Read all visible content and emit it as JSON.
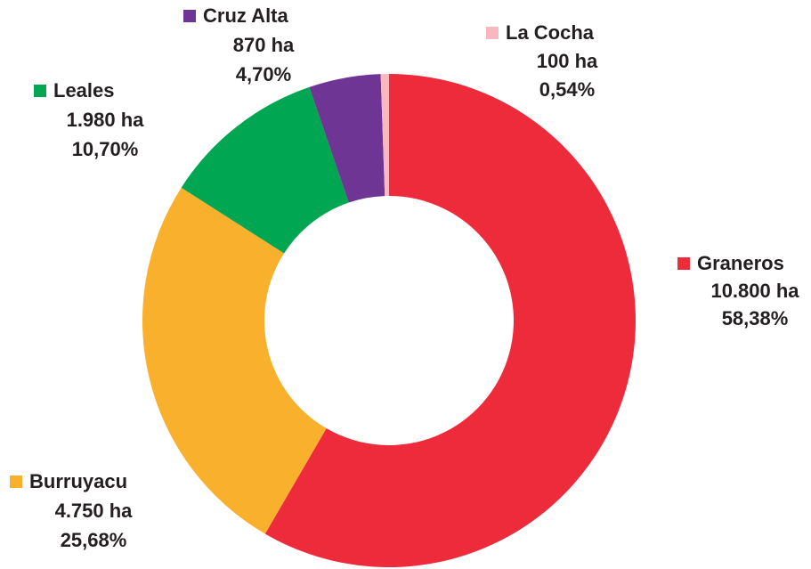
{
  "chart_data": {
    "type": "donut",
    "categories": [
      "Graneros",
      "Burruyacu",
      "Leales",
      "Cruz Alta",
      "La Cocha"
    ],
    "values": [
      58.38,
      25.68,
      10.7,
      4.7,
      0.54
    ],
    "value_labels": [
      "58,38%",
      "25,68%",
      "10,70%",
      "4,70%",
      "0,54%"
    ],
    "area_labels": [
      "10.800 ha",
      "4.750 ha",
      "1.980 ha",
      "870 ha",
      "100 ha"
    ],
    "colors": [
      "#ee2b3b",
      "#f9b02d",
      "#00a651",
      "#6f3594",
      "#f7b8c0"
    ]
  }
}
